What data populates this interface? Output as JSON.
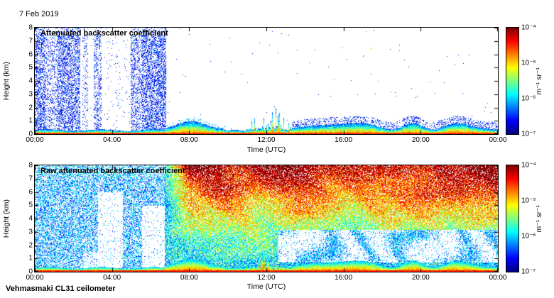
{
  "header": {
    "date": "7 Feb 2019"
  },
  "footer": {
    "station": "Vehmasmaki CL31 ceilometer"
  },
  "colorbar": {
    "ticks": [
      "10⁻⁴",
      "10⁻⁵",
      "10⁻⁶",
      "10⁻⁷"
    ],
    "unit": "m⁻¹ sr⁻¹",
    "colormap": "jet",
    "scale": "log10",
    "min": "1e-7",
    "max": "1e-4"
  },
  "chart_data": [
    {
      "type": "heatmap",
      "title": "Attenuated backscatter coefficient",
      "xlabel": "Time (UTC)",
      "ylabel": "Height (km)",
      "x_ticks": [
        "00:00",
        "04:00",
        "08:00",
        "12:00",
        "16:00",
        "20:00",
        "00:00"
      ],
      "y_ticks": [
        "0",
        "1",
        "2",
        "3",
        "4",
        "5",
        "6",
        "7",
        "8"
      ],
      "xlim_hours": [
        0,
        24
      ],
      "ylim_km": [
        0,
        8
      ],
      "color_scale": "log10",
      "clim_log10": [
        -7,
        -4
      ],
      "colormap": "jet",
      "grid": false,
      "features": {
        "kind": "processed",
        "surface_layer_km": 0.12,
        "boundary_layer": {
          "night_top_km": 0.32,
          "morning_plume": {
            "t_start": 6.7,
            "t_peak": 8.1,
            "t_end": 9.9,
            "top_km": 0.95
          },
          "spike_period": {
            "t_start": 10.9,
            "t_end": 13.3,
            "max_top_km": 1.9,
            "spike_prob": 0.3,
            "spike_center": 12.2
          },
          "afternoon_top_km": 0.8
        },
        "noise_speckle_bands": [
          [
            0.0,
            0.55,
            0.45
          ],
          [
            0.55,
            1.15,
            0.22
          ],
          [
            1.15,
            2.35,
            0.42
          ],
          [
            2.45,
            2.75,
            0.15
          ],
          [
            3.05,
            3.45,
            0.28
          ],
          [
            3.6,
            4.9,
            0.03
          ],
          [
            4.95,
            5.45,
            0.3
          ],
          [
            5.5,
            6.8,
            0.45
          ]
        ],
        "speckle_value_log10": [
          -6.9,
          -6.2
        ],
        "afternoon_speckle": {
          "t_start": 13.3,
          "above_layer_km": 0.55,
          "density": 0.28
        },
        "isolated_points": [
          {
            "t": 17.4,
            "h": 6.5,
            "log10": -5.0
          }
        ]
      }
    },
    {
      "type": "heatmap",
      "title": "Raw attenuated backscatter coefficient",
      "xlabel": "Time (UTC)",
      "ylabel": "Height (km)",
      "x_ticks": [
        "00:00",
        "04:00",
        "08:00",
        "12:00",
        "16:00",
        "20:00",
        "00:00"
      ],
      "y_ticks": [
        "0",
        "1",
        "2",
        "3",
        "4",
        "5",
        "6",
        "7",
        "8"
      ],
      "xlim_hours": [
        0,
        24
      ],
      "ylim_km": [
        0,
        8
      ],
      "color_scale": "log10",
      "clim_log10": [
        -7,
        -4
      ],
      "colormap": "jet",
      "grid": false,
      "features": {
        "kind": "raw",
        "surface_layer_km": 0.12,
        "boundary_layer": {
          "night_top_km": 0.32,
          "morning_plume": {
            "t_start": 6.7,
            "t_peak": 8.1,
            "t_end": 9.9,
            "top_km": 0.95
          },
          "spike_period": {
            "t_start": 10.9,
            "t_end": 13.3,
            "max_top_km": 1.9,
            "spike_prob": 0.3,
            "spike_center": 12.2
          },
          "afternoon_top_km": 0.8
        },
        "background_density_night": 0.5,
        "background_density_day": 0.82,
        "day_transition_hour": 6.7,
        "solar_noise_boost": 2.4,
        "dropout_regions": [
          {
            "t": [
              3.25,
              4.55
            ],
            "h": [
              0,
              6.0
            ],
            "density": 0.06
          },
          {
            "t": [
              5.55,
              6.7
            ],
            "h": [
              0,
              5.0
            ],
            "density": 0.06
          },
          {
            "t": [
              2.5,
              3.25
            ],
            "h": [
              0,
              1.5
            ],
            "density": 0.15
          }
        ],
        "afternoon_low_signal": {
          "t_start": 12.6,
          "h": [
            0.7,
            3.2
          ]
        }
      }
    }
  ]
}
